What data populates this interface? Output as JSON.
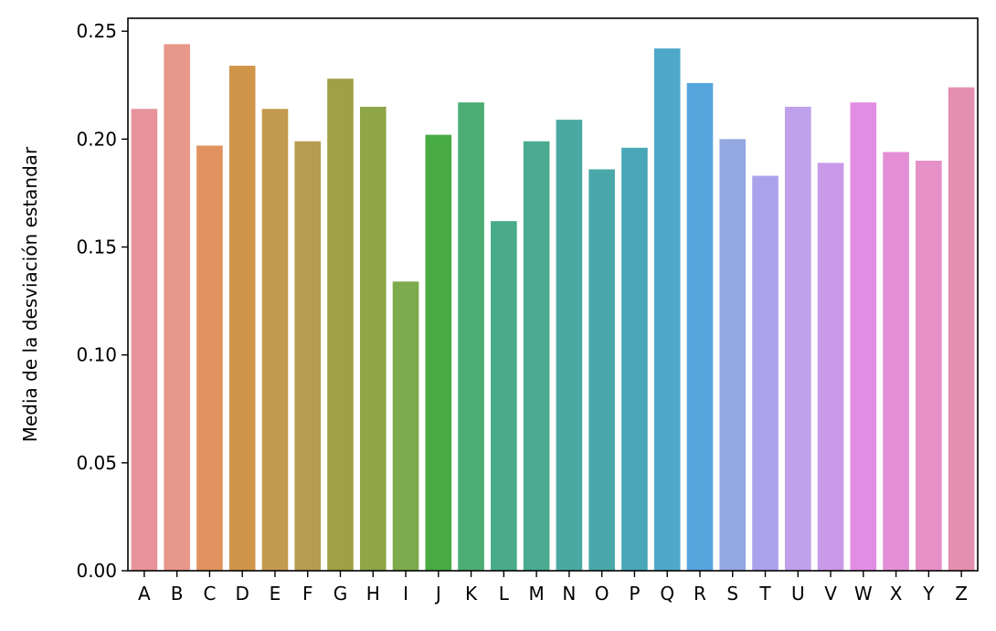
{
  "chart_data": {
    "type": "bar",
    "title": "",
    "xlabel": "",
    "ylabel": "Media de la desviación estandar",
    "ylim": [
      0,
      0.256
    ],
    "yticks": [
      "0.00",
      "0.05",
      "0.10",
      "0.15",
      "0.20",
      "0.25"
    ],
    "grid": false,
    "legend": "none",
    "categories": [
      "A",
      "B",
      "C",
      "D",
      "E",
      "F",
      "G",
      "H",
      "I",
      "J",
      "K",
      "L",
      "M",
      "N",
      "O",
      "P",
      "Q",
      "R",
      "S",
      "T",
      "U",
      "V",
      "W",
      "X",
      "Y",
      "Z"
    ],
    "values": [
      0.214,
      0.244,
      0.197,
      0.234,
      0.214,
      0.199,
      0.228,
      0.215,
      0.134,
      0.202,
      0.217,
      0.162,
      0.199,
      0.209,
      0.186,
      0.196,
      0.242,
      0.226,
      0.2,
      0.183,
      0.215,
      0.189,
      0.217,
      0.194,
      0.19,
      0.224
    ],
    "colors": [
      "#e8939a",
      "#e8978b",
      "#e0935e",
      "#cf9649",
      "#c49a51",
      "#b69c50",
      "#a0a046",
      "#8ea648",
      "#7daa4c",
      "#48ab44",
      "#4cad74",
      "#4aab8b",
      "#4aab91",
      "#4aaaa3",
      "#4ba8aa",
      "#4aa7b8",
      "#4ea8c8",
      "#56a6dd",
      "#93a8e2",
      "#aaa3ec",
      "#bfa0ea",
      "#c99ae8",
      "#e28de4",
      "#e48fd5",
      "#e690c8",
      "#e48fb0"
    ]
  }
}
